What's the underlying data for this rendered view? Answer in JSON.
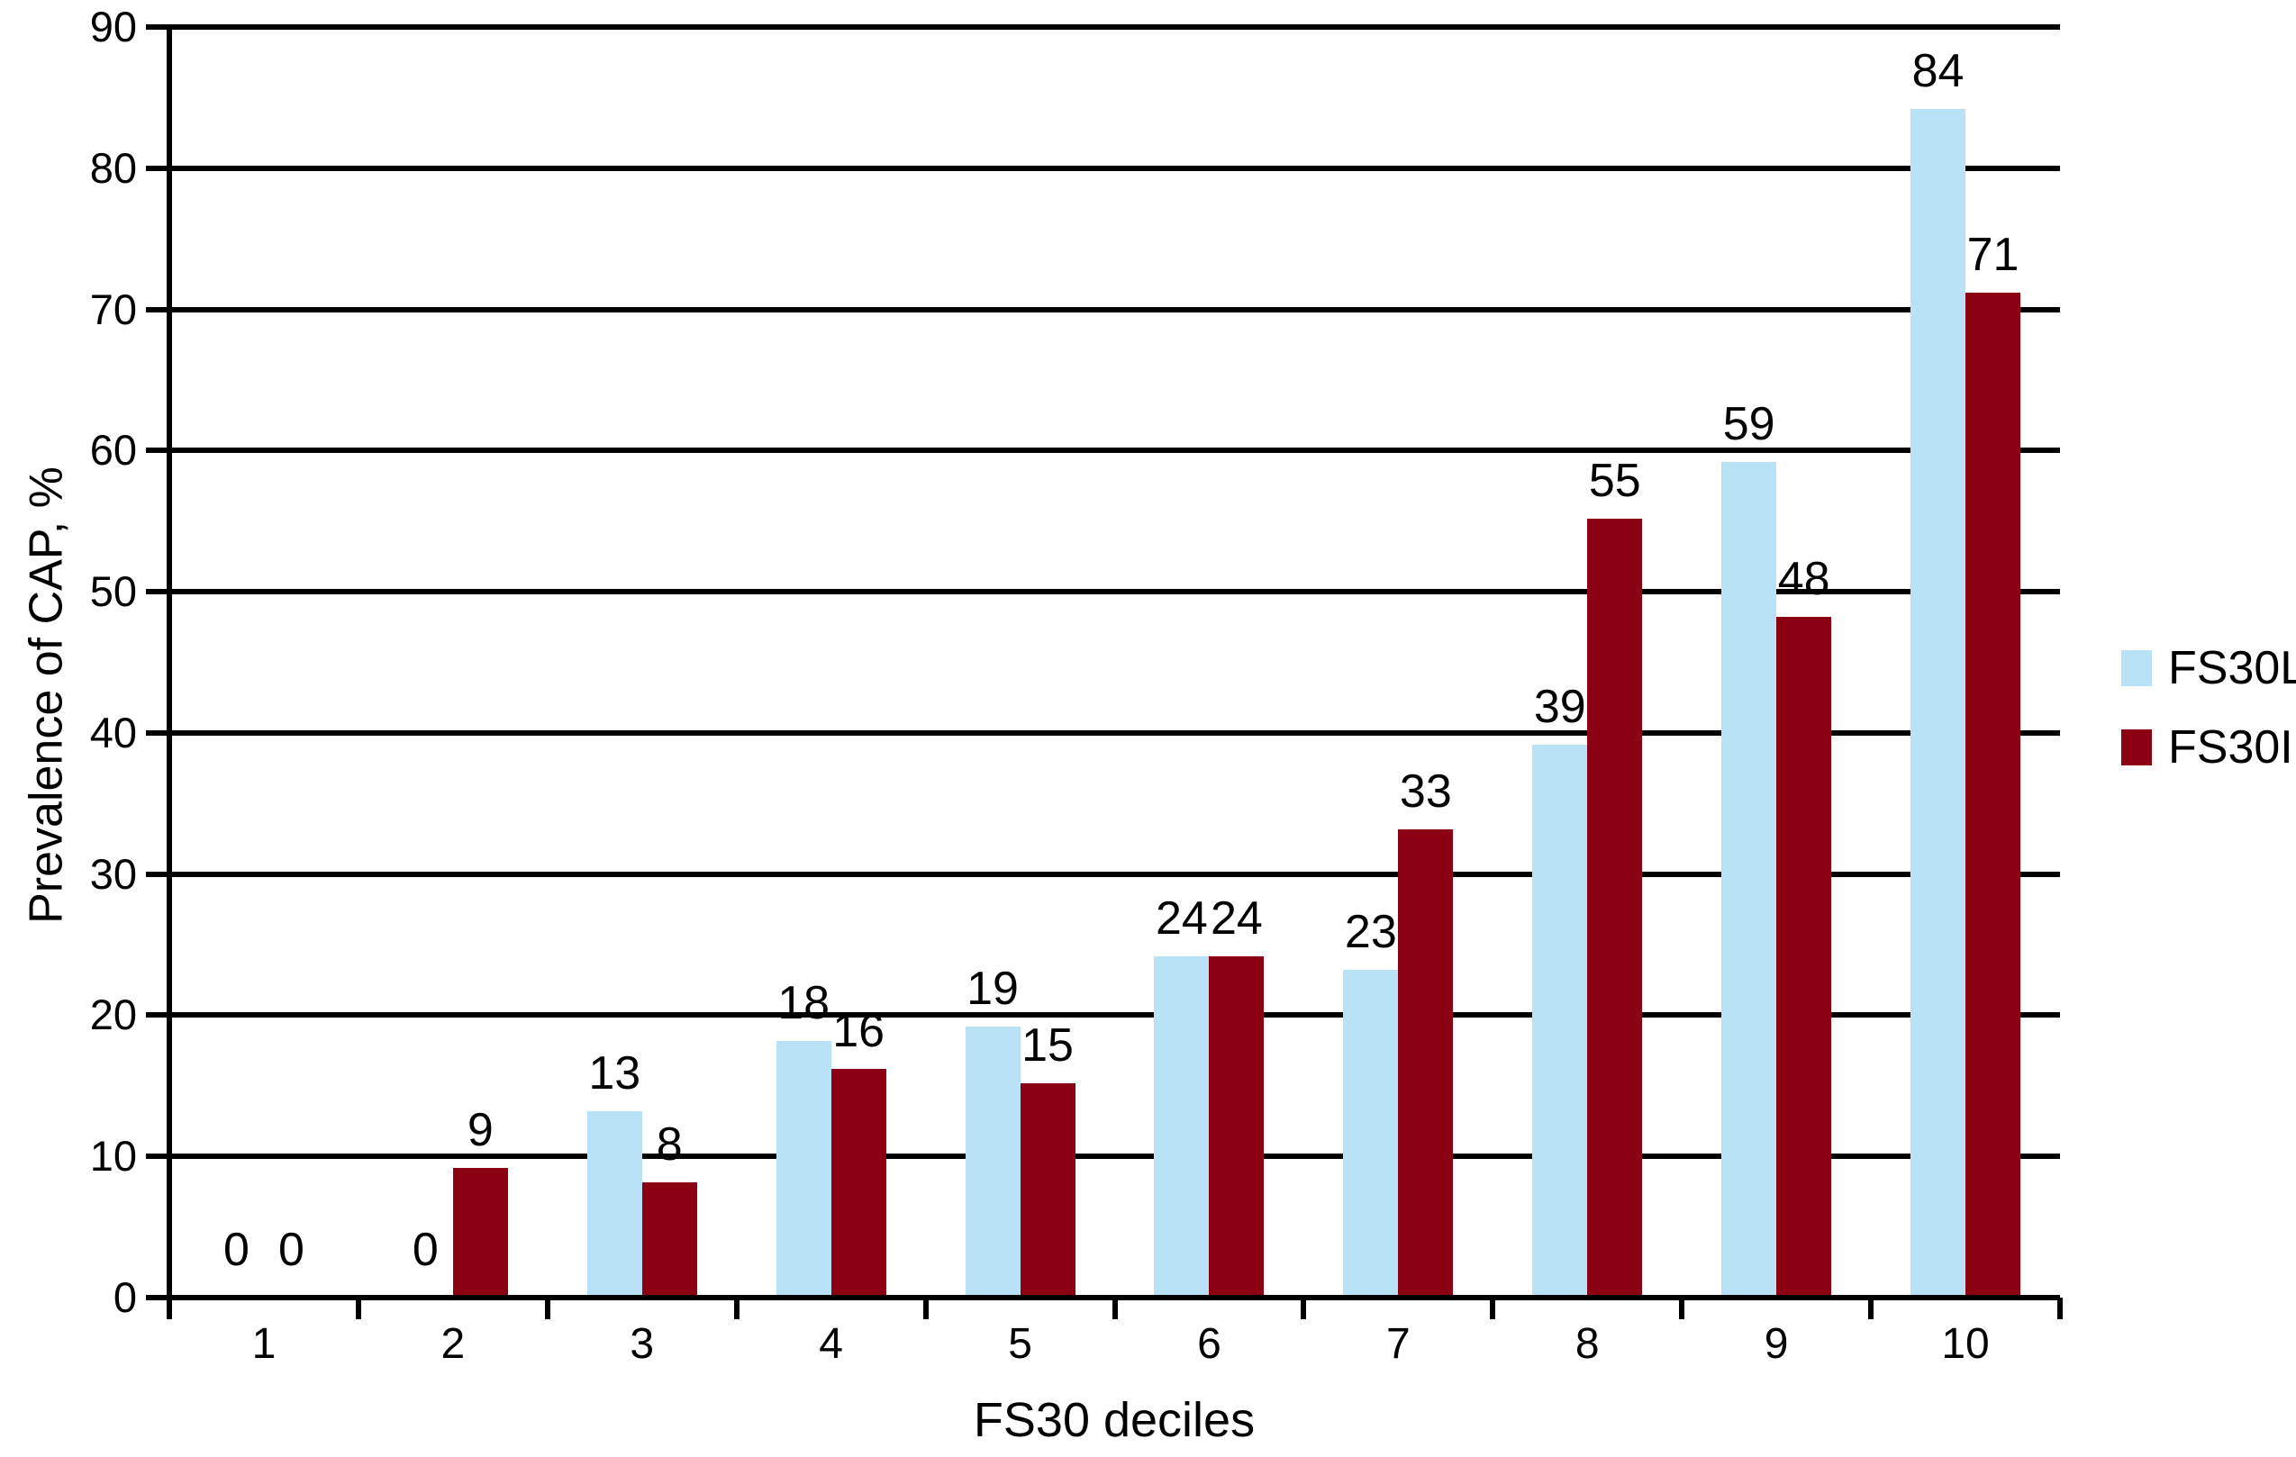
{
  "figure": {
    "background": "#ffffff",
    "axis_color": "#000000",
    "text_color": "#000000"
  },
  "chart_data": {
    "type": "bar",
    "title": "",
    "xlabel": "FS30 deciles",
    "ylabel": "Prevalence of CAP, %",
    "categories": [
      "1",
      "2",
      "3",
      "4",
      "5",
      "6",
      "7",
      "8",
      "9",
      "10"
    ],
    "series": [
      {
        "name": "FS30L",
        "color": "#B9E2F7",
        "values": [
          0,
          0,
          13,
          18,
          19,
          24,
          23,
          39,
          59,
          84
        ]
      },
      {
        "name": "FS30I",
        "color": "#8B0013",
        "values": [
          0,
          9,
          8,
          16,
          15,
          24,
          33,
          55,
          48,
          71
        ]
      }
    ],
    "ylim": [
      0,
      90
    ],
    "ytick_step": 10,
    "ytick_labels": [
      "0",
      "10",
      "20",
      "30",
      "40",
      "50",
      "60",
      "70",
      "80",
      "90"
    ],
    "grid": "horizontal",
    "legend_position": "right",
    "bar_value_labels": true
  }
}
